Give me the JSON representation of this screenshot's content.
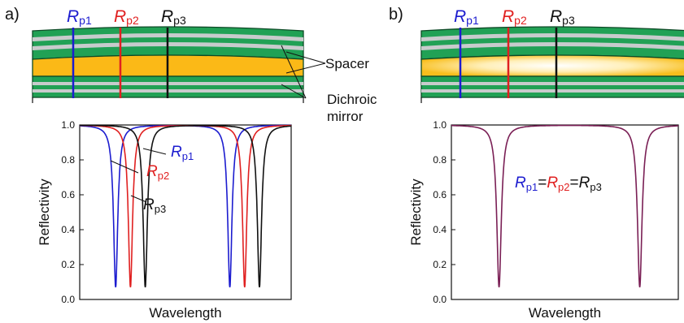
{
  "panels": [
    {
      "letter": "a)",
      "markers": [
        {
          "main": "R",
          "sub": "p1",
          "color": "#1c1ccf"
        },
        {
          "main": "R",
          "sub": "p2",
          "color": "#e02020"
        },
        {
          "main": "R",
          "sub": "p3",
          "color": "#111111"
        }
      ],
      "labels": {
        "spacer": "Spacer",
        "mirror_line1": "Dichroic",
        "mirror_line2": "mirror"
      },
      "annotations": [
        {
          "main": "R",
          "sub": "p1",
          "color": "#1c1ccf"
        },
        {
          "main": "R",
          "sub": "p2",
          "color": "#e02020"
        },
        {
          "main": "R",
          "sub": "p3",
          "color": "#111111"
        }
      ]
    },
    {
      "letter": "b)",
      "markers": [
        {
          "main": "R",
          "sub": "p1",
          "color": "#1c1ccf"
        },
        {
          "main": "R",
          "sub": "p2",
          "color": "#e02020"
        },
        {
          "main": "R",
          "sub": "p3",
          "color": "#111111"
        }
      ],
      "equation": [
        {
          "main": "R",
          "sub": "p1",
          "color": "#1c1ccf"
        },
        {
          "text": "=",
          "color": "#111111"
        },
        {
          "main": "R",
          "sub": "p2",
          "color": "#e02020"
        },
        {
          "text": "=",
          "color": "#111111"
        },
        {
          "main": "R",
          "sub": "p3",
          "color": "#111111"
        }
      ]
    }
  ],
  "chart_data": [
    {
      "type": "line",
      "xlabel": "Wavelength",
      "ylabel": "Reflectivity",
      "ylim": [
        0.0,
        1.0
      ],
      "yticks": [
        "0.0",
        "0.2",
        "0.4",
        "0.6",
        "0.8",
        "1.0"
      ],
      "xticks": [],
      "series": [
        {
          "name": "Rp1",
          "color": "#1c1ccf",
          "dips": [
            {
              "x": 0.17,
              "min": 0.07
            },
            {
              "x": 0.71,
              "min": 0.07
            }
          ]
        },
        {
          "name": "Rp2",
          "color": "#e02020",
          "dips": [
            {
              "x": 0.24,
              "min": 0.07
            },
            {
              "x": 0.78,
              "min": 0.07
            }
          ]
        },
        {
          "name": "Rp3",
          "color": "#111111",
          "dips": [
            {
              "x": 0.31,
              "min": 0.07
            },
            {
              "x": 0.85,
              "min": 0.07
            }
          ]
        }
      ]
    },
    {
      "type": "line",
      "xlabel": "Wavelength",
      "ylabel": "Reflectivity",
      "ylim": [
        0.0,
        1.0
      ],
      "yticks": [
        "0.0",
        "0.2",
        "0.4",
        "0.6",
        "0.8",
        "1.0"
      ],
      "xticks": [],
      "series": [
        {
          "name": "Rp1=Rp2=Rp3",
          "color": "#7a1f55",
          "dips": [
            {
              "x": 0.21,
              "min": 0.07
            },
            {
              "x": 0.83,
              "min": 0.07
            }
          ]
        }
      ]
    }
  ]
}
